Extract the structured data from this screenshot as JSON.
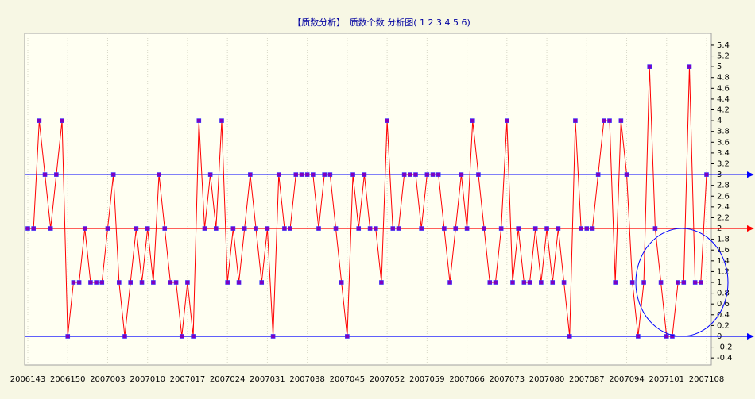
{
  "chart_data": {
    "type": "line",
    "title": "【质数分析】　质数个数 分析图( 1 2 3 4 5 6)",
    "categories": [
      "2006143",
      null,
      null,
      null,
      null,
      null,
      null,
      "2006150",
      null,
      null,
      null,
      null,
      null,
      null,
      "2007003",
      null,
      null,
      null,
      null,
      null,
      null,
      "2007010",
      null,
      null,
      null,
      null,
      null,
      null,
      "2007017",
      null,
      null,
      null,
      null,
      null,
      null,
      "2007024",
      null,
      null,
      null,
      null,
      null,
      null,
      "2007031",
      null,
      null,
      null,
      null,
      null,
      null,
      "2007038",
      null,
      null,
      null,
      null,
      null,
      null,
      "2007045",
      null,
      null,
      null,
      null,
      null,
      null,
      "2007052",
      null,
      null,
      null,
      null,
      null,
      null,
      "2007059",
      null,
      null,
      null,
      null,
      null,
      null,
      "2007066",
      null,
      null,
      null,
      null,
      null,
      null,
      "2007073",
      null,
      null,
      null,
      null,
      null,
      null,
      "2007080",
      null,
      null,
      null,
      null,
      null,
      null,
      "2007087",
      null,
      null,
      null,
      null,
      null,
      null,
      "2007094",
      null,
      null,
      null,
      null,
      null,
      null,
      "2007101",
      null,
      null,
      null,
      null,
      null,
      null,
      "2007108"
    ],
    "values": [
      2,
      2,
      4,
      3,
      2,
      3,
      4,
      0,
      1,
      1,
      2,
      1,
      1,
      1,
      2,
      3,
      1,
      0,
      1,
      2,
      1,
      2,
      1,
      3,
      2,
      1,
      1,
      0,
      1,
      0,
      4,
      2,
      3,
      2,
      4,
      1,
      2,
      1,
      2,
      3,
      2,
      1,
      2,
      0,
      3,
      2,
      2,
      3,
      3,
      3,
      3,
      2,
      3,
      3,
      2,
      1,
      0,
      3,
      2,
      3,
      2,
      2,
      1,
      4,
      2,
      2,
      3,
      3,
      3,
      2,
      3,
      3,
      3,
      2,
      1,
      2,
      3,
      2,
      4,
      3,
      2,
      1,
      1,
      2,
      4,
      1,
      2,
      1,
      1,
      2,
      1,
      2,
      1,
      2,
      1,
      0,
      4,
      2,
      2,
      2,
      3,
      4,
      4,
      1,
      4,
      3,
      1,
      0,
      1,
      5,
      2,
      1,
      0,
      0,
      1,
      1,
      5,
      1,
      1,
      3
    ],
    "color": "#ff0000",
    "marker_color": "#8000c0",
    "ylim": [
      -0.53,
      5.62
    ],
    "yticks": [
      -0.4,
      -0.2,
      0,
      0.2,
      0.4,
      0.6,
      0.8,
      1,
      1.2,
      1.4,
      1.6,
      1.8,
      2,
      2.2,
      2.4,
      2.6,
      2.8,
      3,
      3.2,
      3.4,
      3.6,
      3.8,
      4,
      4.2,
      4.4,
      4.6,
      4.8,
      5,
      5.2,
      5.4
    ],
    "hlines": [
      {
        "value": 3,
        "color": "#0000ff"
      },
      {
        "value": 2,
        "color": "#ff0000"
      },
      {
        "value": 0,
        "color": "#0000ff"
      }
    ],
    "grid": true
  }
}
